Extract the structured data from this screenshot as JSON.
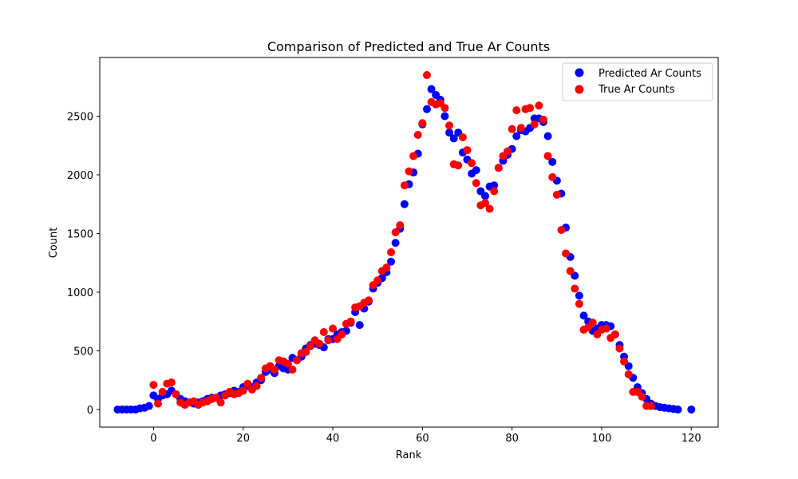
{
  "chart_data": {
    "type": "scatter",
    "title": "Comparison of Predicted and True Ar Counts",
    "xlabel": "Rank",
    "ylabel": "Count",
    "xlim": [
      -12,
      126
    ],
    "ylim": [
      -150,
      3000
    ],
    "xticks": [
      0,
      20,
      40,
      60,
      80,
      100,
      120
    ],
    "yticks": [
      0,
      500,
      1000,
      1500,
      2000,
      2500
    ],
    "grid": false,
    "legend_position": "top-right",
    "series": [
      {
        "name": "Predicted Ar Counts",
        "color": "#0000ff",
        "points": [
          [
            -8,
            0
          ],
          [
            -7,
            0
          ],
          [
            -6,
            0
          ],
          [
            -5,
            0
          ],
          [
            -4,
            0
          ],
          [
            -3,
            10
          ],
          [
            -2,
            15
          ],
          [
            -1,
            30
          ],
          [
            0,
            120
          ],
          [
            1,
            90
          ],
          [
            2,
            120
          ],
          [
            3,
            130
          ],
          [
            4,
            160
          ],
          [
            5,
            130
          ],
          [
            6,
            90
          ],
          [
            7,
            70
          ],
          [
            8,
            60
          ],
          [
            9,
            50
          ],
          [
            10,
            60
          ],
          [
            11,
            70
          ],
          [
            12,
            90
          ],
          [
            13,
            100
          ],
          [
            14,
            100
          ],
          [
            15,
            120
          ],
          [
            16,
            130
          ],
          [
            17,
            140
          ],
          [
            18,
            160
          ],
          [
            19,
            150
          ],
          [
            20,
            190
          ],
          [
            21,
            200
          ],
          [
            22,
            190
          ],
          [
            23,
            230
          ],
          [
            24,
            250
          ],
          [
            25,
            320
          ],
          [
            26,
            340
          ],
          [
            27,
            310
          ],
          [
            28,
            370
          ],
          [
            29,
            350
          ],
          [
            30,
            340
          ],
          [
            31,
            440
          ],
          [
            32,
            420
          ],
          [
            33,
            450
          ],
          [
            34,
            520
          ],
          [
            35,
            550
          ],
          [
            36,
            560
          ],
          [
            37,
            550
          ],
          [
            38,
            530
          ],
          [
            39,
            600
          ],
          [
            40,
            600
          ],
          [
            41,
            640
          ],
          [
            42,
            660
          ],
          [
            43,
            670
          ],
          [
            44,
            740
          ],
          [
            45,
            830
          ],
          [
            46,
            720
          ],
          [
            47,
            860
          ],
          [
            48,
            920
          ],
          [
            49,
            1030
          ],
          [
            50,
            1080
          ],
          [
            51,
            1120
          ],
          [
            52,
            1170
          ],
          [
            53,
            1260
          ],
          [
            54,
            1420
          ],
          [
            55,
            1540
          ],
          [
            56,
            1750
          ],
          [
            57,
            1920
          ],
          [
            58,
            2020
          ],
          [
            59,
            2180
          ],
          [
            60,
            2430
          ],
          [
            61,
            2560
          ],
          [
            62,
            2730
          ],
          [
            63,
            2680
          ],
          [
            64,
            2640
          ],
          [
            65,
            2500
          ],
          [
            66,
            2360
          ],
          [
            67,
            2310
          ],
          [
            68,
            2360
          ],
          [
            69,
            2190
          ],
          [
            70,
            2130
          ],
          [
            71,
            2010
          ],
          [
            72,
            2040
          ],
          [
            73,
            1860
          ],
          [
            74,
            1820
          ],
          [
            75,
            1900
          ],
          [
            76,
            1910
          ],
          [
            77,
            2060
          ],
          [
            78,
            2120
          ],
          [
            79,
            2170
          ],
          [
            80,
            2220
          ],
          [
            81,
            2330
          ],
          [
            82,
            2380
          ],
          [
            83,
            2370
          ],
          [
            84,
            2400
          ],
          [
            85,
            2480
          ],
          [
            86,
            2480
          ],
          [
            87,
            2450
          ],
          [
            88,
            2330
          ],
          [
            89,
            2110
          ],
          [
            90,
            1950
          ],
          [
            91,
            1840
          ],
          [
            92,
            1550
          ],
          [
            93,
            1300
          ],
          [
            94,
            1140
          ],
          [
            95,
            970
          ],
          [
            96,
            800
          ],
          [
            97,
            750
          ],
          [
            98,
            670
          ],
          [
            99,
            690
          ],
          [
            100,
            720
          ],
          [
            101,
            720
          ],
          [
            102,
            710
          ],
          [
            103,
            640
          ],
          [
            104,
            550
          ],
          [
            105,
            450
          ],
          [
            106,
            370
          ],
          [
            107,
            270
          ],
          [
            108,
            190
          ],
          [
            109,
            140
          ],
          [
            110,
            90
          ],
          [
            111,
            50
          ],
          [
            112,
            30
          ],
          [
            113,
            20
          ],
          [
            114,
            15
          ],
          [
            115,
            10
          ],
          [
            116,
            5
          ],
          [
            117,
            0
          ],
          [
            120,
            0
          ]
        ]
      },
      {
        "name": "True Ar Counts",
        "color": "#ff0000",
        "points": [
          [
            0,
            210
          ],
          [
            1,
            50
          ],
          [
            2,
            150
          ],
          [
            3,
            220
          ],
          [
            4,
            230
          ],
          [
            5,
            130
          ],
          [
            6,
            60
          ],
          [
            7,
            40
          ],
          [
            8,
            60
          ],
          [
            9,
            70
          ],
          [
            10,
            40
          ],
          [
            11,
            60
          ],
          [
            12,
            70
          ],
          [
            13,
            90
          ],
          [
            14,
            100
          ],
          [
            15,
            60
          ],
          [
            16,
            120
          ],
          [
            17,
            150
          ],
          [
            18,
            130
          ],
          [
            19,
            140
          ],
          [
            20,
            160
          ],
          [
            21,
            220
          ],
          [
            22,
            170
          ],
          [
            23,
            200
          ],
          [
            24,
            270
          ],
          [
            25,
            350
          ],
          [
            26,
            370
          ],
          [
            27,
            340
          ],
          [
            28,
            420
          ],
          [
            29,
            410
          ],
          [
            30,
            390
          ],
          [
            31,
            340
          ],
          [
            32,
            420
          ],
          [
            33,
            480
          ],
          [
            34,
            490
          ],
          [
            35,
            540
          ],
          [
            36,
            590
          ],
          [
            37,
            560
          ],
          [
            38,
            660
          ],
          [
            39,
            590
          ],
          [
            40,
            690
          ],
          [
            41,
            600
          ],
          [
            42,
            640
          ],
          [
            43,
            730
          ],
          [
            44,
            750
          ],
          [
            45,
            870
          ],
          [
            46,
            880
          ],
          [
            47,
            910
          ],
          [
            48,
            930
          ],
          [
            49,
            1060
          ],
          [
            50,
            1100
          ],
          [
            51,
            1180
          ],
          [
            52,
            1210
          ],
          [
            53,
            1340
          ],
          [
            54,
            1510
          ],
          [
            55,
            1570
          ],
          [
            56,
            1910
          ],
          [
            57,
            2030
          ],
          [
            58,
            2160
          ],
          [
            59,
            2340
          ],
          [
            60,
            2440
          ],
          [
            61,
            2850
          ],
          [
            62,
            2620
          ],
          [
            63,
            2600
          ],
          [
            64,
            2610
          ],
          [
            65,
            2570
          ],
          [
            66,
            2420
          ],
          [
            67,
            2090
          ],
          [
            68,
            2080
          ],
          [
            69,
            2320
          ],
          [
            70,
            2210
          ],
          [
            71,
            2100
          ],
          [
            72,
            1930
          ],
          [
            73,
            1740
          ],
          [
            74,
            1760
          ],
          [
            75,
            1710
          ],
          [
            76,
            1860
          ],
          [
            77,
            2060
          ],
          [
            78,
            2160
          ],
          [
            79,
            2200
          ],
          [
            80,
            2390
          ],
          [
            81,
            2550
          ],
          [
            82,
            2400
          ],
          [
            83,
            2560
          ],
          [
            84,
            2570
          ],
          [
            85,
            2430
          ],
          [
            86,
            2590
          ],
          [
            87,
            2470
          ],
          [
            88,
            2160
          ],
          [
            89,
            1980
          ],
          [
            90,
            1830
          ],
          [
            91,
            1530
          ],
          [
            92,
            1330
          ],
          [
            93,
            1180
          ],
          [
            94,
            1030
          ],
          [
            95,
            900
          ],
          [
            96,
            680
          ],
          [
            97,
            700
          ],
          [
            98,
            740
          ],
          [
            99,
            640
          ],
          [
            100,
            680
          ],
          [
            101,
            690
          ],
          [
            102,
            610
          ],
          [
            103,
            640
          ],
          [
            104,
            520
          ],
          [
            105,
            410
          ],
          [
            106,
            300
          ],
          [
            107,
            150
          ],
          [
            108,
            150
          ],
          [
            109,
            110
          ],
          [
            110,
            30
          ],
          [
            111,
            30
          ]
        ]
      }
    ]
  }
}
